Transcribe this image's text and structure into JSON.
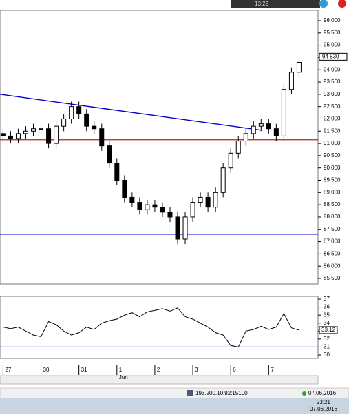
{
  "chart_data": [
    {
      "type": "candlestick",
      "x": [
        0,
        1,
        2,
        3,
        4,
        5,
        6,
        7,
        8,
        9,
        10,
        11,
        12,
        13,
        14,
        15,
        16,
        17,
        18,
        19,
        20,
        21,
        22,
        23,
        24,
        25,
        26,
        27,
        28,
        29,
        30,
        31,
        32,
        33,
        34,
        35,
        36,
        37,
        38,
        39
      ],
      "open": [
        91400,
        91300,
        91200,
        91400,
        91500,
        91600,
        91600,
        91000,
        91700,
        92000,
        92500,
        92200,
        91700,
        91600,
        90900,
        90200,
        89500,
        88800,
        88600,
        88300,
        88500,
        88400,
        88200,
        88000,
        87100,
        88000,
        88600,
        88800,
        88400,
        89000,
        90000,
        90600,
        91100,
        91400,
        91700,
        91800,
        91600,
        91300,
        93200,
        93900
      ],
      "high": [
        91600,
        91500,
        91600,
        91700,
        91800,
        91800,
        91800,
        91900,
        92200,
        92700,
        92700,
        92400,
        91900,
        91800,
        91100,
        90400,
        89700,
        89000,
        88800,
        88700,
        88700,
        88600,
        88400,
        88200,
        88200,
        88800,
        89000,
        89000,
        89200,
        90200,
        90800,
        91300,
        91600,
        91900,
        92000,
        92000,
        91800,
        93400,
        94100,
        94500
      ],
      "low": [
        91100,
        91000,
        91000,
        91200,
        91300,
        91400,
        90800,
        90800,
        91500,
        91800,
        92000,
        91500,
        91400,
        90700,
        90000,
        89300,
        88600,
        88400,
        88100,
        88100,
        88200,
        88000,
        87800,
        86900,
        86900,
        87800,
        88400,
        88200,
        88200,
        88800,
        89800,
        90400,
        90900,
        91200,
        91500,
        91400,
        91100,
        91100,
        93000,
        93700
      ],
      "close": [
        91300,
        91200,
        91400,
        91500,
        91600,
        91600,
        91000,
        91700,
        92000,
        92500,
        92200,
        91700,
        91600,
        90900,
        90200,
        89500,
        88800,
        88600,
        88300,
        88500,
        88400,
        88200,
        88000,
        87100,
        88000,
        88600,
        88800,
        88400,
        89000,
        90000,
        90600,
        91100,
        91400,
        91700,
        91800,
        91600,
        91300,
        93200,
        93900,
        94300
      ],
      "xlim": [
        -0.4,
        41.5
      ],
      "ylim": [
        85275,
        96421
      ],
      "yticks": [
        {
          "value": 96000,
          "label": "96 000"
        },
        {
          "value": 95500,
          "label": "95 500"
        },
        {
          "value": 95000,
          "label": "95 000"
        },
        {
          "value": 94500,
          "label": "94 500"
        },
        {
          "value": 94000,
          "label": "94 000"
        },
        {
          "value": 93500,
          "label": "93 500"
        },
        {
          "value": 93000,
          "label": "93 000"
        },
        {
          "value": 92500,
          "label": "92 500"
        },
        {
          "value": 92000,
          "label": "92 000"
        },
        {
          "value": 91500,
          "label": "91 500"
        },
        {
          "value": 91000,
          "label": "91 000"
        },
        {
          "value": 90500,
          "label": "90 500"
        },
        {
          "value": 90000,
          "label": "90 000"
        },
        {
          "value": 89500,
          "label": "89 500"
        },
        {
          "value": 89000,
          "label": "89 000"
        },
        {
          "value": 88500,
          "label": "88 500"
        },
        {
          "value": 88000,
          "label": "88 000"
        },
        {
          "value": 87500,
          "label": "87 500"
        },
        {
          "value": 87000,
          "label": "87 000"
        },
        {
          "value": 86500,
          "label": "86 500"
        },
        {
          "value": 86000,
          "label": "86 000"
        },
        {
          "value": 85500,
          "label": "85 500"
        }
      ],
      "current_price": {
        "value": 94530,
        "label": "94 530"
      },
      "hlines": [
        {
          "value": 91150,
          "color": "#b22222"
        },
        {
          "value": 87300,
          "color": "#0000cc"
        }
      ],
      "trendline": {
        "x": [
          -0.4,
          34
        ],
        "y": [
          93000,
          91540
        ],
        "color": "#0000cc"
      }
    },
    {
      "type": "line",
      "x": [
        0,
        1,
        2,
        3,
        4,
        5,
        6,
        7,
        8,
        9,
        10,
        11,
        12,
        13,
        14,
        15,
        16,
        17,
        18,
        19,
        20,
        21,
        22,
        23,
        24,
        25,
        26,
        27,
        28,
        29,
        30,
        31,
        32,
        33,
        34,
        35,
        36,
        37,
        38,
        39
      ],
      "values": [
        33.5,
        33.3,
        33.5,
        33,
        32.5,
        32.3,
        34.2,
        33.8,
        33,
        32.5,
        32.8,
        33.5,
        33.2,
        34,
        34.3,
        34.5,
        35,
        35.3,
        34.8,
        35.4,
        35.6,
        35.8,
        35.5,
        35.9,
        34.8,
        34.5,
        34,
        33.5,
        32.8,
        32.5,
        31.2,
        31,
        33,
        33.2,
        33.6,
        33.2,
        33.5,
        35.2,
        33.4,
        33.12
      ],
      "color": "#000000",
      "xlim": [
        -0.4,
        41.5
      ],
      "ylim": [
        29.57,
        37.35
      ],
      "yticks": [
        37,
        36,
        35,
        34,
        33,
        32,
        31,
        30
      ],
      "current_value": 33.12,
      "hlines": [
        {
          "value": 31,
          "color": "#0000cc"
        }
      ],
      "xticks": [
        {
          "value": 0,
          "label": "27"
        },
        {
          "value": 5,
          "label": "30"
        },
        {
          "value": 10,
          "label": "31"
        },
        {
          "value": 15,
          "label": "1"
        },
        {
          "value": 20,
          "label": "2"
        },
        {
          "value": 25,
          "label": "3"
        },
        {
          "value": 30,
          "label": "6"
        },
        {
          "value": 35,
          "label": "7"
        }
      ],
      "month_label": "Jun"
    }
  ],
  "top_window": {
    "time": "13:22"
  },
  "status_bar": {
    "server": "193.200.10.92:15100",
    "date": "07.06.2016"
  },
  "taskbar": {
    "time": "23:21",
    "date": "07.06.2016"
  }
}
